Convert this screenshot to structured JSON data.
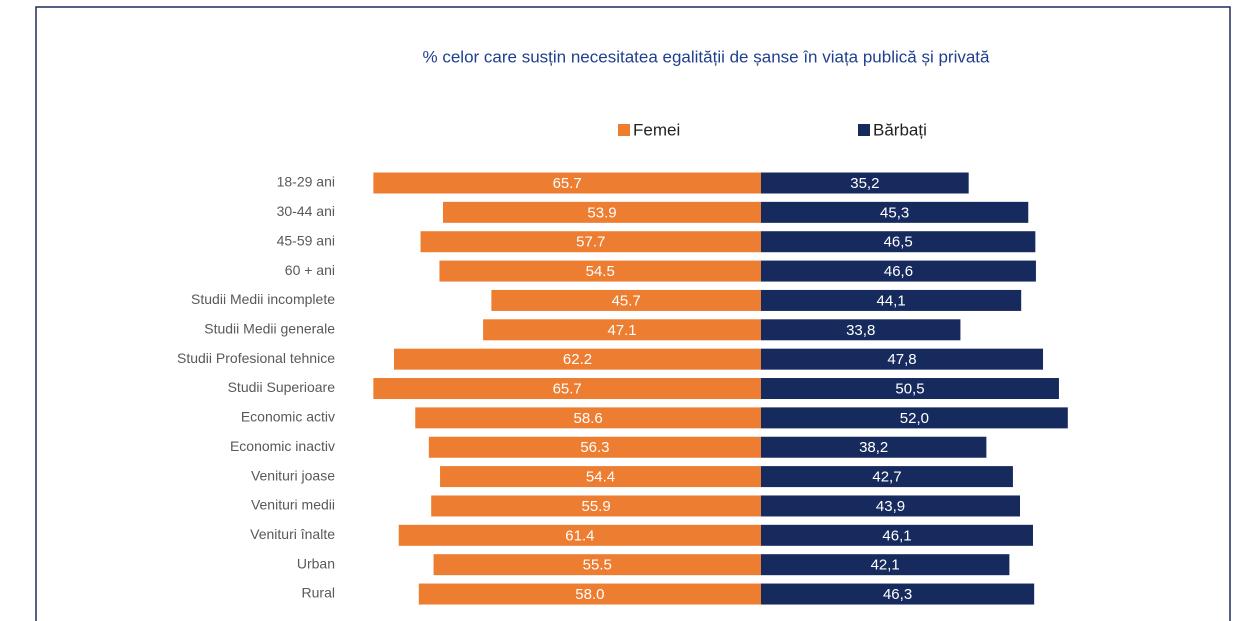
{
  "chart_data": {
    "type": "diverging-bar",
    "title": "% celor care susțin necesitatea egalității de șanse în viața publică și privată",
    "categories": [
      "18-29 ani",
      "30-44 ani",
      "45-59 ani",
      "60 + ani",
      "Studii Medii incomplete",
      "Studii Medii generale",
      "Studii Profesional tehnice",
      "Studii Superioare",
      "Economic activ",
      "Economic inactiv",
      "Venituri joase",
      "Venituri medii",
      "Venituri înalte",
      "Urban",
      "Rural"
    ],
    "series": [
      {
        "name": "Femei",
        "color": "#ed7d31",
        "values": [
          65.7,
          53.9,
          57.7,
          54.5,
          45.7,
          47.1,
          62.2,
          65.7,
          58.6,
          56.3,
          54.4,
          55.9,
          61.4,
          55.5,
          58.0
        ],
        "value_labels": [
          "65.7",
          "53.9",
          "57.7",
          "54.5",
          "45.7",
          "47.1",
          "62.2",
          "65.7",
          "58.6",
          "56.3",
          "54.4",
          "55.9",
          "61.4",
          "55.5",
          "58.0"
        ]
      },
      {
        "name": "Bărbați",
        "color": "#172a5e",
        "values": [
          35.2,
          45.3,
          46.5,
          46.6,
          44.1,
          33.8,
          47.8,
          50.5,
          52.0,
          38.2,
          42.7,
          43.9,
          46.1,
          42.1,
          46.3
        ],
        "value_labels": [
          "35,2",
          "45,3",
          "46,5",
          "46,6",
          "44,1",
          "33,8",
          "47,8",
          "50,5",
          "52,0",
          "38,2",
          "42,7",
          "43,9",
          "46,1",
          "42,1",
          "46,3"
        ]
      }
    ],
    "legend": "top"
  }
}
